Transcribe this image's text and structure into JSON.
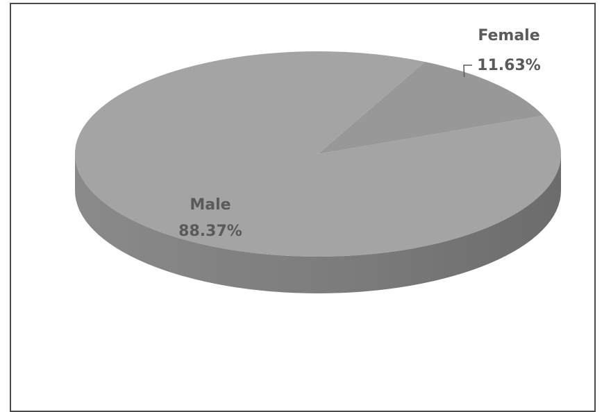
{
  "chart_data": {
    "type": "pie",
    "style": "3d",
    "slices": [
      {
        "label": "Male",
        "value": 88.37,
        "value_label": "88.37%",
        "color": "#a4a4a4"
      },
      {
        "label": "Female",
        "value": 11.63,
        "value_label": "11.63%",
        "color": "#989898"
      }
    ],
    "colors": {
      "top_face": "#a4a4a4",
      "female_slice": "#989898",
      "side_face": "#7e7e7e",
      "label_text": "#5a5a5a",
      "frame_border": "#4a4a4a"
    },
    "labels": {
      "male_name": "Male",
      "male_value": "88.37%",
      "female_name": "Female",
      "female_value": "11.63%"
    },
    "legend": "none",
    "grid": false
  }
}
